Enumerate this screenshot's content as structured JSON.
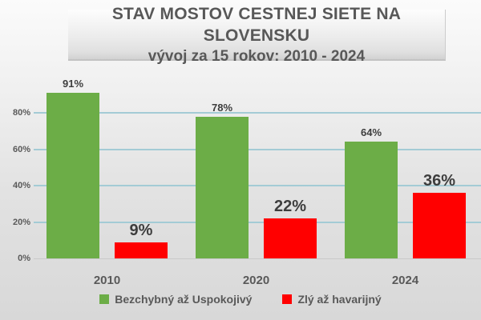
{
  "title": {
    "line1": "STAV MOSTOV CESTNEJ SIETE NA SLOVENSKU",
    "line2": "vývoj za 15 rokov: 2010 - 2024"
  },
  "chart_data": {
    "type": "bar",
    "title": "STAV MOSTOV CESTNEJ SIETE NA SLOVENSKU",
    "subtitle": "vývoj za 15 rokov: 2010 - 2024",
    "categories": [
      "2010",
      "2020",
      "2024"
    ],
    "series": [
      {
        "name": "Bezchybný až Uspokojivý",
        "color": "#6cad47",
        "values": [
          91,
          78,
          64
        ],
        "labels": [
          "91%",
          "78%",
          "64%"
        ]
      },
      {
        "name": "Zlý až havarijný",
        "color": "#ff0000",
        "values": [
          9,
          22,
          36
        ],
        "labels": [
          "9%",
          "22%",
          "36%"
        ]
      }
    ],
    "y_ticks": [
      {
        "label": "0%",
        "value": 0
      },
      {
        "label": "20%",
        "value": 20
      },
      {
        "label": "40%",
        "value": 40
      },
      {
        "label": "60%",
        "value": 60
      },
      {
        "label": "80%",
        "value": 80
      }
    ],
    "ylim": [
      0,
      100
    ],
    "grid": true,
    "gridline_color": "#a3cbd5",
    "value_label_color": "#3d3d3d",
    "axis_label_color": "#595959",
    "legend_position": "bottom"
  }
}
